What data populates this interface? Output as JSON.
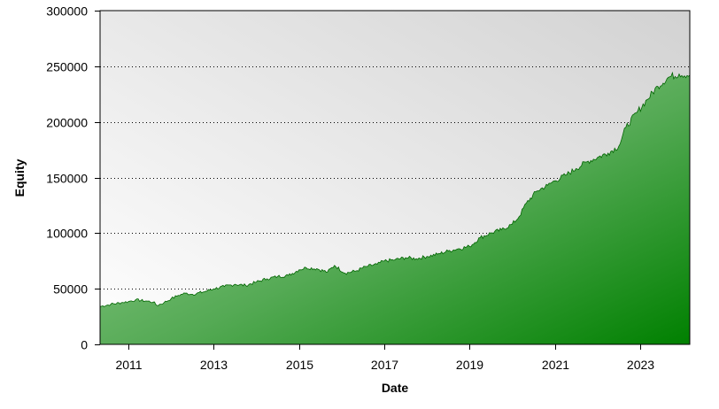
{
  "chart_data": {
    "type": "area",
    "xlabel": "Date",
    "ylabel": "Equity",
    "ylim": [
      0,
      300000
    ],
    "xlim": [
      "2010-05",
      "2024-03"
    ],
    "grid": {
      "x": false,
      "y": true,
      "style": "dotted"
    },
    "y_ticks": [
      {
        "value": 0,
        "label": "0"
      },
      {
        "value": 50000,
        "label": "50000"
      },
      {
        "value": 100000,
        "label": "100000"
      },
      {
        "value": 150000,
        "label": "150000"
      },
      {
        "value": 200000,
        "label": "200000"
      },
      {
        "value": 250000,
        "label": "250000"
      },
      {
        "value": 300000,
        "label": "300000"
      }
    ],
    "x_ticks": [
      {
        "value": "2011-01",
        "label": "2011"
      },
      {
        "value": "2013-01",
        "label": "2013"
      },
      {
        "value": "2015-01",
        "label": "2015"
      },
      {
        "value": "2017-01",
        "label": "2017"
      },
      {
        "value": "2019-01",
        "label": "2019"
      },
      {
        "value": "2021-01",
        "label": "2021"
      },
      {
        "value": "2023-01",
        "label": "2023"
      }
    ],
    "series": [
      {
        "points": [
          [
            "2010-05",
            34000
          ],
          [
            "2010-08",
            36000
          ],
          [
            "2010-11",
            37500
          ],
          [
            "2011-01",
            38500
          ],
          [
            "2011-03",
            40000
          ],
          [
            "2011-06",
            39000
          ],
          [
            "2011-08",
            38000
          ],
          [
            "2011-09",
            35000
          ],
          [
            "2011-11",
            37500
          ],
          [
            "2012-01",
            41000
          ],
          [
            "2012-03",
            44000
          ],
          [
            "2012-05",
            46000
          ],
          [
            "2012-07",
            45000
          ],
          [
            "2012-10",
            47000
          ],
          [
            "2013-01",
            50000
          ],
          [
            "2013-04",
            52000
          ],
          [
            "2013-07",
            54000
          ],
          [
            "2013-10",
            53000
          ],
          [
            "2014-01",
            56000
          ],
          [
            "2014-04",
            59000
          ],
          [
            "2014-07",
            61000
          ],
          [
            "2014-10",
            62000
          ],
          [
            "2015-01",
            67000
          ],
          [
            "2015-03",
            69000
          ],
          [
            "2015-06",
            68000
          ],
          [
            "2015-09",
            65000
          ],
          [
            "2015-11",
            71000
          ],
          [
            "2016-02",
            64000
          ],
          [
            "2016-05",
            66000
          ],
          [
            "2016-08",
            70000
          ],
          [
            "2016-11",
            72000
          ],
          [
            "2017-01",
            75000
          ],
          [
            "2017-04",
            76000
          ],
          [
            "2017-07",
            78000
          ],
          [
            "2017-10",
            77000
          ],
          [
            "2018-01",
            79000
          ],
          [
            "2018-04",
            81000
          ],
          [
            "2018-07",
            84000
          ],
          [
            "2018-10",
            86000
          ],
          [
            "2019-01",
            88000
          ],
          [
            "2019-04",
            96000
          ],
          [
            "2019-07",
            100000
          ],
          [
            "2019-10",
            103000
          ],
          [
            "2020-01",
            108000
          ],
          [
            "2020-03",
            115000
          ],
          [
            "2020-05",
            127000
          ],
          [
            "2020-08",
            138000
          ],
          [
            "2020-11",
            143000
          ],
          [
            "2021-01",
            147000
          ],
          [
            "2021-04",
            152000
          ],
          [
            "2021-07",
            158000
          ],
          [
            "2021-10",
            164000
          ],
          [
            "2022-01",
            168000
          ],
          [
            "2022-04",
            172000
          ],
          [
            "2022-07",
            178000
          ],
          [
            "2022-09",
            195000
          ],
          [
            "2022-12",
            208000
          ],
          [
            "2023-03",
            220000
          ],
          [
            "2023-06",
            232000
          ],
          [
            "2023-09",
            240000
          ],
          [
            "2023-12",
            243000
          ],
          [
            "2024-03",
            242000
          ]
        ]
      }
    ]
  }
}
